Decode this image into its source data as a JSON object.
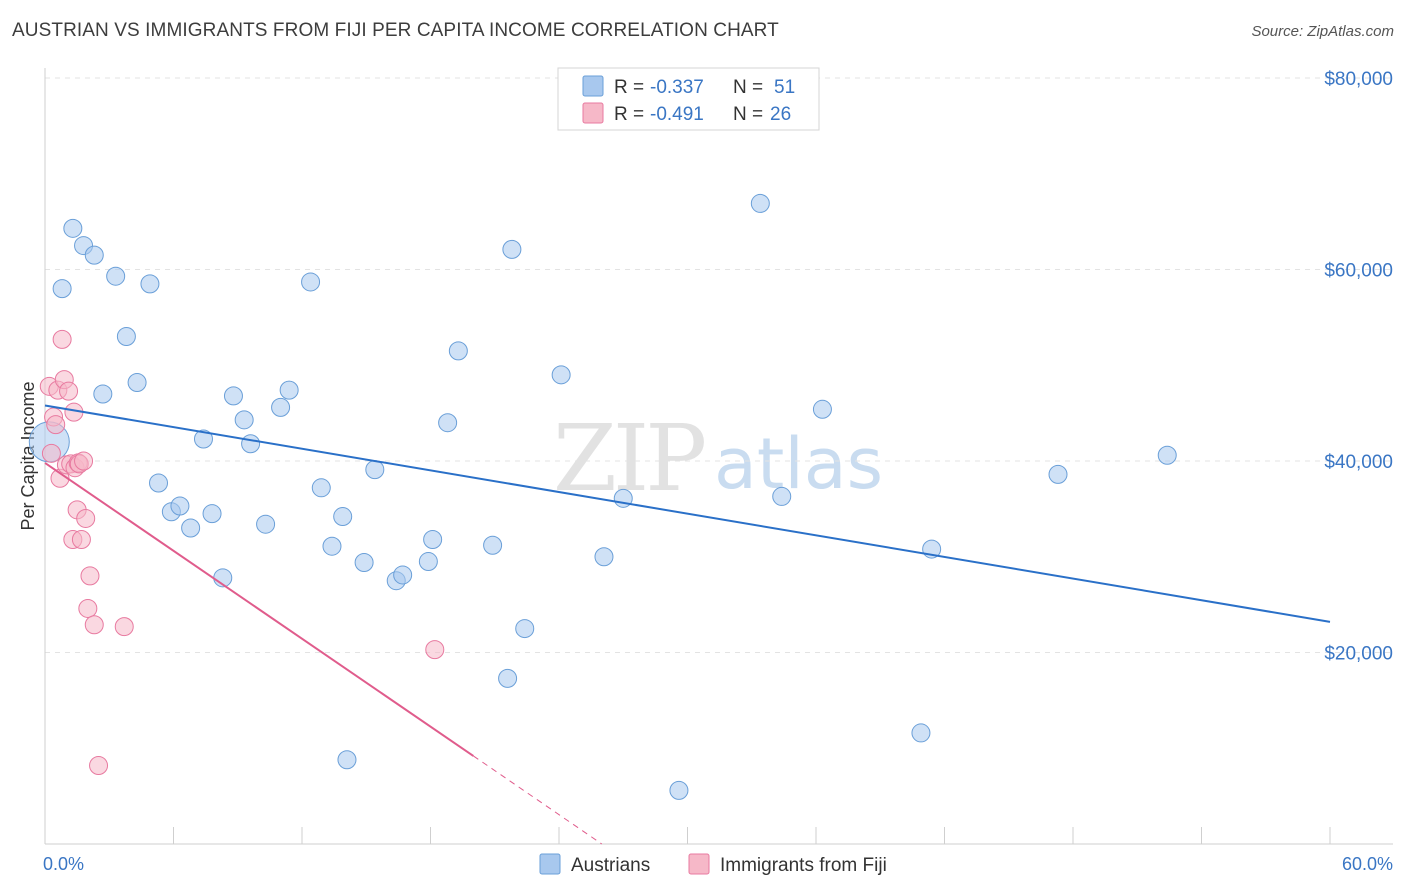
{
  "header": {
    "title": "AUSTRIAN VS IMMIGRANTS FROM FIJI PER CAPITA INCOME CORRELATION CHART",
    "source": "Source: ZipAtlas.com"
  },
  "legend": {
    "rows": [
      {
        "r_label": "R = ",
        "r_value": "-0.337",
        "n_label": "N = ",
        "n_value": "51",
        "color": "#a8c8ee"
      },
      {
        "r_label": "R = ",
        "r_value": "-0.491",
        "n_label": "N = ",
        "n_value": "26",
        "color": "#f6b8c8"
      }
    ]
  },
  "bottom_legend": {
    "austrians": "Austrians",
    "fiji": "Immigrants from Fiji"
  },
  "watermark": {
    "zip": "ZIP",
    "atlas": "atlas"
  },
  "chart_data": {
    "type": "scatter",
    "ylabel": "Per Capita Income",
    "xlim": [
      0,
      60
    ],
    "ylim": [
      0,
      80000
    ],
    "x_tick_labels": {
      "min": "0.0%",
      "max": "60.0%"
    },
    "y_ticks": [
      {
        "value": 20000,
        "label": "$20,000"
      },
      {
        "value": 40000,
        "label": "$40,000"
      },
      {
        "value": 60000,
        "label": "$60,000"
      },
      {
        "value": 80000,
        "label": "$80,000"
      }
    ],
    "grid": true,
    "series": [
      {
        "name": "Austrians",
        "color": "#a8c8ee",
        "stroke": "#6a9fd8",
        "trend_color": "#2a70c8",
        "trend": {
          "x0": 0,
          "y0": 45800,
          "x1": 60,
          "y1": 23200
        },
        "points": [
          [
            0.2,
            42000
          ],
          [
            0.8,
            58000
          ],
          [
            1.3,
            64300
          ],
          [
            1.8,
            62500
          ],
          [
            2.3,
            61500
          ],
          [
            2.7,
            47000
          ],
          [
            3.3,
            59300
          ],
          [
            3.8,
            53000
          ],
          [
            4.3,
            48200
          ],
          [
            4.9,
            58500
          ],
          [
            5.3,
            37700
          ],
          [
            5.9,
            34700
          ],
          [
            6.3,
            35300
          ],
          [
            6.8,
            33000
          ],
          [
            7.4,
            42300
          ],
          [
            7.8,
            34500
          ],
          [
            8.3,
            27800
          ],
          [
            8.8,
            46800
          ],
          [
            9.3,
            44300
          ],
          [
            9.6,
            41800
          ],
          [
            10.3,
            33400
          ],
          [
            11.0,
            45600
          ],
          [
            11.4,
            47400
          ],
          [
            12.4,
            58700
          ],
          [
            12.9,
            37200
          ],
          [
            13.4,
            31100
          ],
          [
            13.9,
            34200
          ],
          [
            14.1,
            8800
          ],
          [
            14.9,
            29400
          ],
          [
            15.4,
            39100
          ],
          [
            16.4,
            27500
          ],
          [
            16.7,
            28100
          ],
          [
            17.9,
            29500
          ],
          [
            18.1,
            31800
          ],
          [
            18.8,
            44000
          ],
          [
            19.3,
            51500
          ],
          [
            20.9,
            31200
          ],
          [
            21.6,
            17300
          ],
          [
            21.8,
            62100
          ],
          [
            22.4,
            22500
          ],
          [
            24.1,
            49000
          ],
          [
            26.1,
            30000
          ],
          [
            27.0,
            36100
          ],
          [
            29.6,
            5600
          ],
          [
            33.4,
            66900
          ],
          [
            34.4,
            36300
          ],
          [
            36.3,
            45400
          ],
          [
            40.9,
            11600
          ],
          [
            41.4,
            30800
          ],
          [
            47.3,
            38600
          ],
          [
            52.4,
            40600
          ]
        ]
      },
      {
        "name": "Immigrants from Fiji",
        "color": "#f6b8c8",
        "stroke": "#e87aa0",
        "trend_color": "#e05c8c",
        "trend": {
          "x0": 0,
          "y0": 39800,
          "x1": 20,
          "y1": 9200
        },
        "trend_dashed_to": {
          "x": 26,
          "y": 0
        },
        "points": [
          [
            0.2,
            47800
          ],
          [
            0.4,
            44600
          ],
          [
            0.5,
            43800
          ],
          [
            0.6,
            47400
          ],
          [
            0.7,
            38200
          ],
          [
            0.8,
            52700
          ],
          [
            0.9,
            48500
          ],
          [
            1.0,
            39600
          ],
          [
            1.1,
            47300
          ],
          [
            1.2,
            39700
          ],
          [
            1.3,
            31800
          ],
          [
            1.35,
            45100
          ],
          [
            1.4,
            39300
          ],
          [
            1.5,
            34900
          ],
          [
            1.55,
            39800
          ],
          [
            1.6,
            39700
          ],
          [
            1.7,
            31800
          ],
          [
            1.8,
            40000
          ],
          [
            1.9,
            34000
          ],
          [
            2.0,
            24600
          ],
          [
            2.1,
            28000
          ],
          [
            2.3,
            22900
          ],
          [
            2.5,
            8200
          ],
          [
            3.7,
            22700
          ],
          [
            18.2,
            20300
          ],
          [
            0.3,
            40800
          ]
        ]
      }
    ]
  }
}
